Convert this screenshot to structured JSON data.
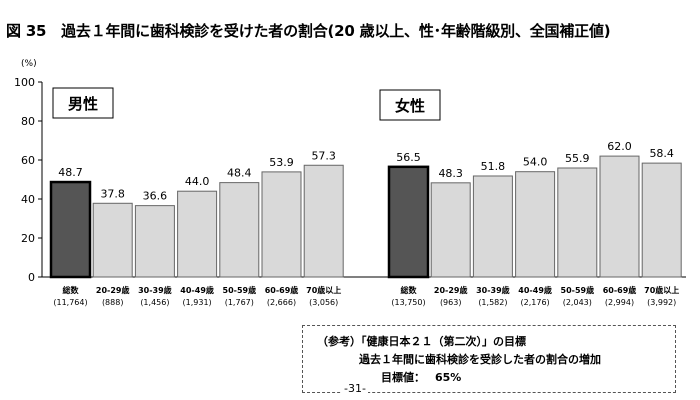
{
  "figure_title": "図 35　過去１年間に歯科検診を受けた者の割合(20 歳以上、性･年齢階級別、全国補正値)",
  "page_number": "-31-",
  "reference_box": {
    "title": "（参考）「健康日本２１（第二次）」の目標",
    "goal": "過去１年間に歯科検診を受診した者の割合の増加",
    "target_label": "目標値：",
    "target_value": "65%"
  },
  "colors": {
    "total_bar": "#555555",
    "age_bar": "#d9d9d9",
    "bar_stroke": "#666666"
  },
  "chart_data": {
    "type": "bar",
    "y_unit": "(%)",
    "ylim": [
      0,
      100
    ],
    "yticks": [
      0,
      20,
      40,
      60,
      80,
      100
    ],
    "grid": false,
    "groups": [
      {
        "name": "男性",
        "categories": [
          "総数",
          "20-29歳",
          "30-39歳",
          "40-49歳",
          "50-59歳",
          "60-69歳",
          "70歳以上"
        ],
        "sample_sizes": [
          "(11,764)",
          "(888)",
          "(1,456)",
          "(1,931)",
          "(1,767)",
          "(2,666)",
          "(3,056)"
        ],
        "values": [
          48.7,
          37.8,
          36.6,
          44.0,
          48.4,
          53.9,
          57.3
        ]
      },
      {
        "name": "女性",
        "categories": [
          "総数",
          "20-29歳",
          "30-39歳",
          "40-49歳",
          "50-59歳",
          "60-69歳",
          "70歳以上"
        ],
        "sample_sizes": [
          "(13,750)",
          "(963)",
          "(1,582)",
          "(2,176)",
          "(2,043)",
          "(2,994)",
          "(3,992)"
        ],
        "values": [
          56.5,
          48.3,
          51.8,
          54.0,
          55.9,
          62.0,
          58.4
        ]
      }
    ]
  }
}
